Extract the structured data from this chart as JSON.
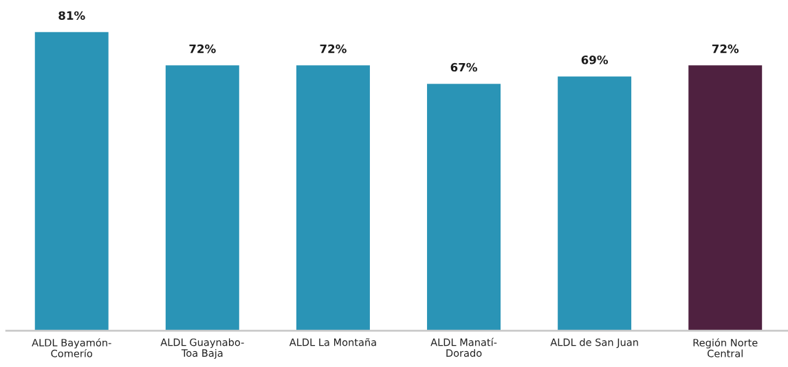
{
  "chart_data": {
    "type": "bar",
    "categories": [
      "ALDL Bayamón-\nComerío",
      "ALDL Guaynabo-\nToa Baja",
      "ALDL La Montaña",
      "ALDL Manatí-\nDorado",
      "ALDL de San Juan",
      "Región Norte\nCentral"
    ],
    "values": [
      81,
      72,
      72,
      67,
      69,
      72
    ],
    "value_labels": [
      "81%",
      "72%",
      "72%",
      "67%",
      "69%",
      "72%"
    ],
    "colors": [
      "#2a94b6",
      "#2a94b6",
      "#2a94b6",
      "#2a94b6",
      "#2a94b6",
      "#4f2140"
    ],
    "tick_labels": "x",
    "grid": false,
    "legend": false
  }
}
